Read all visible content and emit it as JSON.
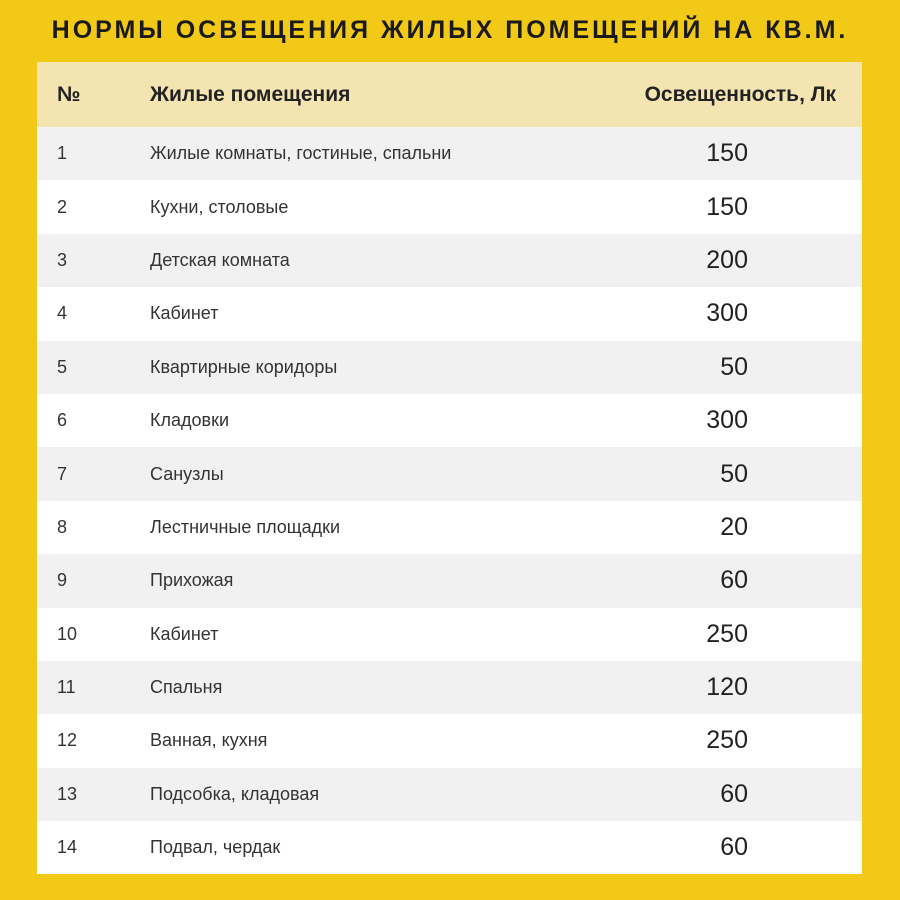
{
  "title": "НОРМЫ ОСВЕЩЕНИЯ ЖИЛЫХ ПОМЕЩЕНИЙ НА КВ.М.",
  "colors": {
    "background": "#f3c918",
    "header": "#f4e4b2",
    "row_alt": "#f1f1f1"
  },
  "table": {
    "headers": [
      "№",
      "Жилые помещения",
      "Освещенность, Лк"
    ],
    "rows": [
      [
        "1",
        "Жилые комнаты, гостиные, спальни",
        "150"
      ],
      [
        "2",
        "Кухни, столовые",
        "150"
      ],
      [
        "3",
        "Детская комната",
        "200"
      ],
      [
        "4",
        "Кабинет",
        "300"
      ],
      [
        "5",
        "Квартирные коридоры",
        "50"
      ],
      [
        "6",
        "Кладовки",
        "300"
      ],
      [
        "7",
        "Санузлы",
        "50"
      ],
      [
        "8",
        "Лестничные площадки",
        "20"
      ],
      [
        "9",
        "Прихожая",
        "60"
      ],
      [
        "10",
        "Кабинет",
        "250"
      ],
      [
        "11",
        "Спальня",
        "120"
      ],
      [
        "12",
        "Ванная, кухня",
        "250"
      ],
      [
        "13",
        "Подсобка, кладовая",
        "60"
      ],
      [
        "14",
        "Подвал, чердак",
        "60"
      ]
    ]
  }
}
